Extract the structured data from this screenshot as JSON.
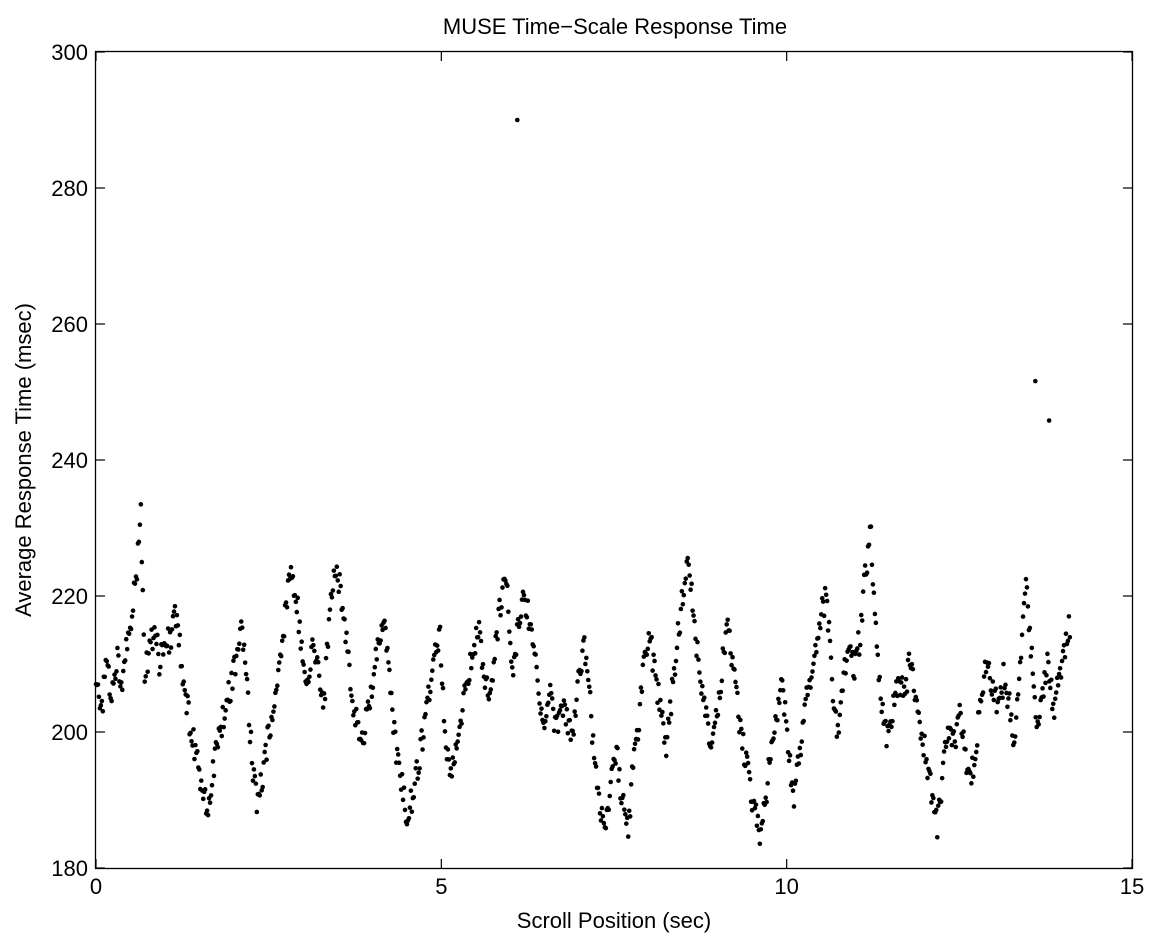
{
  "chart_data": {
    "type": "scatter",
    "title": "MUSE Time−Scale Response Time",
    "xlabel": "Scroll Position (sec)",
    "ylabel": "Average Response Time (msec)",
    "xlim": [
      0,
      15
    ],
    "ylim": [
      180,
      300
    ],
    "xticks": [
      0,
      5,
      10,
      15
    ],
    "yticks": [
      180,
      200,
      220,
      240,
      260,
      280,
      300
    ],
    "grid": false,
    "legend": "none",
    "marker_color": "#000000",
    "outliers": [
      [
        6.1,
        290
      ],
      [
        13.6,
        251.6
      ],
      [
        13.8,
        245.8
      ]
    ],
    "anchors": [
      [
        0.0,
        207
      ],
      [
        0.08,
        203
      ],
      [
        0.15,
        210
      ],
      [
        0.22,
        205
      ],
      [
        0.3,
        211
      ],
      [
        0.38,
        206
      ],
      [
        0.45,
        213
      ],
      [
        0.52,
        218
      ],
      [
        0.6,
        225
      ],
      [
        0.65,
        232
      ],
      [
        0.7,
        209
      ],
      [
        0.78,
        212
      ],
      [
        0.85,
        215
      ],
      [
        0.92,
        210
      ],
      [
        1.0,
        213
      ],
      [
        1.08,
        214
      ],
      [
        1.15,
        217
      ],
      [
        1.22,
        212
      ],
      [
        1.3,
        205
      ],
      [
        1.38,
        200
      ],
      [
        1.46,
        196
      ],
      [
        1.54,
        192
      ],
      [
        1.62,
        188
      ],
      [
        1.7,
        195
      ],
      [
        1.78,
        199
      ],
      [
        1.86,
        203
      ],
      [
        1.94,
        206
      ],
      [
        2.02,
        210
      ],
      [
        2.1,
        215
      ],
      [
        2.18,
        208
      ],
      [
        2.26,
        196
      ],
      [
        2.34,
        189
      ],
      [
        2.42,
        194
      ],
      [
        2.5,
        200
      ],
      [
        2.58,
        204
      ],
      [
        2.66,
        210
      ],
      [
        2.74,
        217
      ],
      [
        2.82,
        224
      ],
      [
        2.9,
        220
      ],
      [
        2.98,
        212
      ],
      [
        3.06,
        207
      ],
      [
        3.14,
        213
      ],
      [
        3.22,
        209
      ],
      [
        3.3,
        204
      ],
      [
        3.38,
        218
      ],
      [
        3.46,
        225
      ],
      [
        3.54,
        221
      ],
      [
        3.62,
        214
      ],
      [
        3.7,
        205
      ],
      [
        3.78,
        202
      ],
      [
        3.86,
        199
      ],
      [
        3.94,
        203
      ],
      [
        4.02,
        209
      ],
      [
        4.1,
        213
      ],
      [
        4.18,
        215
      ],
      [
        4.26,
        206
      ],
      [
        4.34,
        198
      ],
      [
        4.42,
        193
      ],
      [
        4.5,
        188
      ],
      [
        4.58,
        190
      ],
      [
        4.66,
        195
      ],
      [
        4.74,
        200
      ],
      [
        4.82,
        206
      ],
      [
        4.9,
        211
      ],
      [
        4.98,
        214
      ],
      [
        5.06,
        199
      ],
      [
        5.14,
        193
      ],
      [
        5.22,
        197
      ],
      [
        5.3,
        203
      ],
      [
        5.38,
        207
      ],
      [
        5.46,
        212
      ],
      [
        5.54,
        215
      ],
      [
        5.62,
        209
      ],
      [
        5.7,
        205
      ],
      [
        5.78,
        213
      ],
      [
        5.86,
        219
      ],
      [
        5.94,
        223
      ],
      [
        6.02,
        207
      ],
      [
        6.1,
        214
      ],
      [
        6.18,
        221
      ],
      [
        6.26,
        217
      ],
      [
        6.34,
        212
      ],
      [
        6.42,
        205
      ],
      [
        6.5,
        200
      ],
      [
        6.58,
        206
      ],
      [
        6.66,
        200
      ],
      [
        6.74,
        204
      ],
      [
        6.82,
        202
      ],
      [
        6.9,
        199
      ],
      [
        6.98,
        208
      ],
      [
        7.06,
        213
      ],
      [
        7.14,
        206
      ],
      [
        7.22,
        195
      ],
      [
        7.3,
        189
      ],
      [
        7.38,
        186
      ],
      [
        7.46,
        193
      ],
      [
        7.54,
        197
      ],
      [
        7.62,
        190
      ],
      [
        7.7,
        185
      ],
      [
        7.78,
        195
      ],
      [
        7.86,
        202
      ],
      [
        7.94,
        210
      ],
      [
        8.02,
        214
      ],
      [
        8.1,
        208
      ],
      [
        8.18,
        203
      ],
      [
        8.26,
        198
      ],
      [
        8.34,
        206
      ],
      [
        8.42,
        214
      ],
      [
        8.5,
        220
      ],
      [
        8.58,
        226
      ],
      [
        8.66,
        216
      ],
      [
        8.74,
        209
      ],
      [
        8.82,
        204
      ],
      [
        8.9,
        198
      ],
      [
        8.98,
        202
      ],
      [
        9.06,
        209
      ],
      [
        9.14,
        216
      ],
      [
        9.22,
        210
      ],
      [
        9.3,
        203
      ],
      [
        9.38,
        197
      ],
      [
        9.46,
        193
      ],
      [
        9.54,
        188
      ],
      [
        9.62,
        185
      ],
      [
        9.7,
        191
      ],
      [
        9.78,
        197
      ],
      [
        9.86,
        202
      ],
      [
        9.94,
        207
      ],
      [
        10.02,
        198
      ],
      [
        10.1,
        190
      ],
      [
        10.18,
        196
      ],
      [
        10.26,
        203
      ],
      [
        10.34,
        207
      ],
      [
        10.42,
        211
      ],
      [
        10.5,
        218
      ],
      [
        10.58,
        220
      ],
      [
        10.66,
        206
      ],
      [
        10.74,
        200
      ],
      [
        10.82,
        208
      ],
      [
        10.9,
        212
      ],
      [
        10.98,
        209
      ],
      [
        11.06,
        214
      ],
      [
        11.14,
        224
      ],
      [
        11.22,
        229
      ],
      [
        11.3,
        214
      ],
      [
        11.38,
        203
      ],
      [
        11.46,
        199
      ],
      [
        11.54,
        204
      ],
      [
        11.62,
        208
      ],
      [
        11.7,
        205
      ],
      [
        11.78,
        210
      ],
      [
        11.86,
        206
      ],
      [
        11.94,
        201
      ],
      [
        12.02,
        196
      ],
      [
        12.1,
        191
      ],
      [
        12.18,
        186
      ],
      [
        12.26,
        194
      ],
      [
        12.34,
        201
      ],
      [
        12.42,
        198
      ],
      [
        12.5,
        203
      ],
      [
        12.58,
        197
      ],
      [
        12.66,
        192
      ],
      [
        12.74,
        198
      ],
      [
        12.82,
        206
      ],
      [
        12.9,
        210
      ],
      [
        12.98,
        207
      ],
      [
        13.06,
        203
      ],
      [
        13.14,
        208
      ],
      [
        13.22,
        204
      ],
      [
        13.3,
        197
      ],
      [
        13.38,
        210
      ],
      [
        13.46,
        222
      ],
      [
        13.54,
        212
      ],
      [
        13.62,
        199
      ],
      [
        13.7,
        206
      ],
      [
        13.78,
        211
      ],
      [
        13.86,
        203
      ],
      [
        13.94,
        208
      ],
      [
        14.02,
        212
      ],
      [
        14.1,
        216
      ]
    ],
    "n_points": 1000
  }
}
